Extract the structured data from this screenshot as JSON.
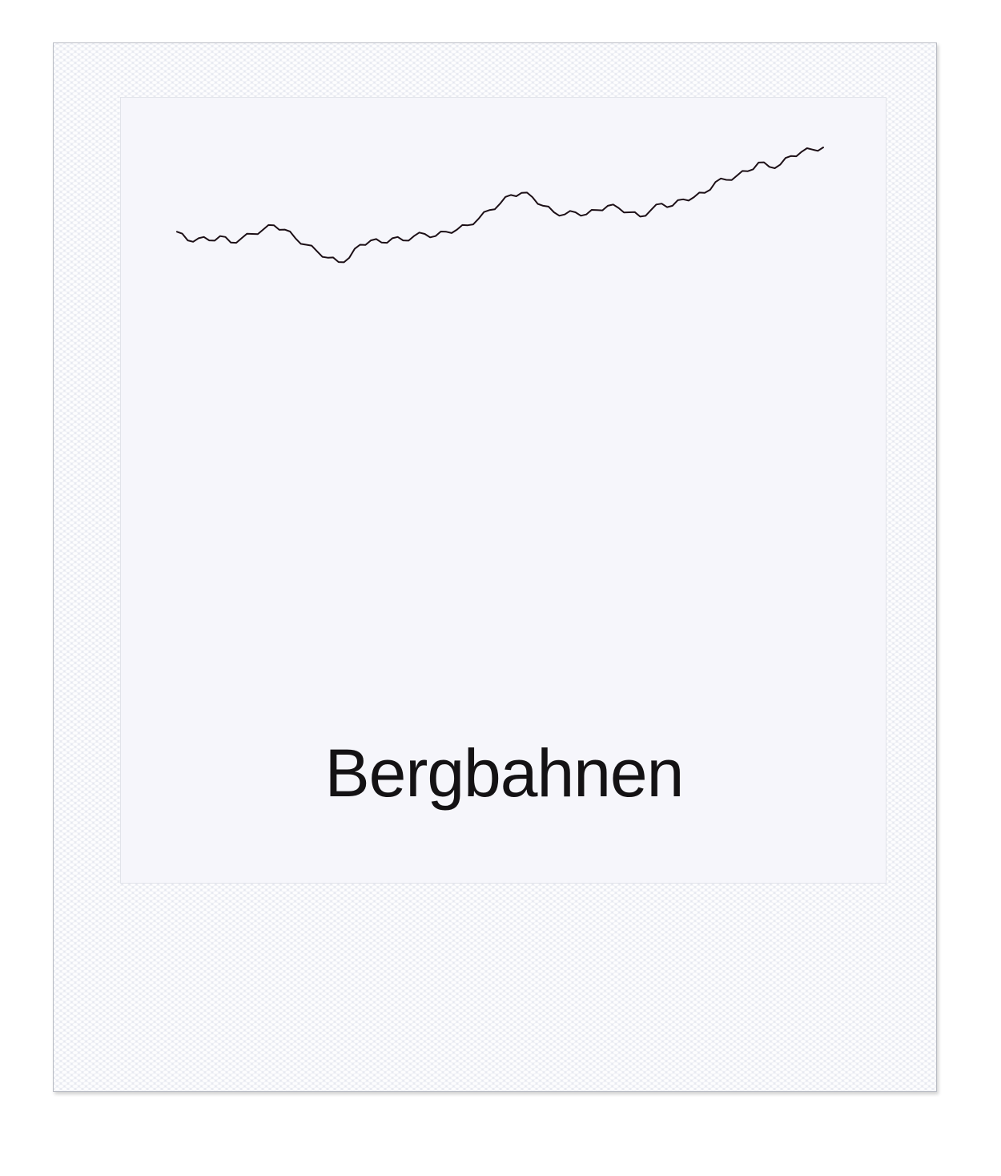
{
  "card": {
    "label": "Bergbahnen"
  },
  "colors": {
    "line": "#1c0f16",
    "frame": "#e6e8f0",
    "photo": "#f6f6fb",
    "text": "#141214"
  },
  "chart_data": {
    "type": "line",
    "title": "",
    "xlabel": "",
    "ylabel": "",
    "grid": false,
    "ylim": [
      0,
      100
    ],
    "series": [
      {
        "values": [
          61,
          57,
          58,
          57,
          59,
          56,
          58,
          60,
          62,
          64,
          62,
          58,
          55,
          52,
          49,
          47,
          49,
          55,
          57,
          56,
          58,
          57,
          59,
          60,
          59,
          61,
          62,
          64,
          67,
          71,
          74,
          78,
          79,
          77,
          73,
          70,
          69,
          70,
          69,
          71,
          73,
          72,
          70,
          68,
          71,
          74,
          73,
          76,
          77,
          79,
          84,
          85,
          87,
          89,
          93,
          91,
          92,
          96,
          98,
          99,
          100
        ]
      }
    ]
  }
}
